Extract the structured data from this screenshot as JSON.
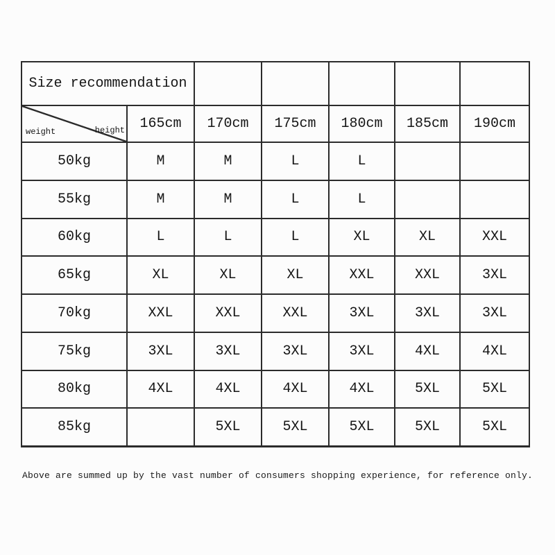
{
  "title": "Size recommendation",
  "corner": {
    "weight_label": "weight",
    "height_label": "height"
  },
  "table": {
    "columns": [
      "165cm",
      "170cm",
      "175cm",
      "180cm",
      "185cm",
      "190cm"
    ],
    "rows": [
      {
        "weight": "50kg",
        "sizes": [
          "M",
          "M",
          "L",
          "L",
          "",
          ""
        ]
      },
      {
        "weight": "55kg",
        "sizes": [
          "M",
          "M",
          "L",
          "L",
          "",
          ""
        ]
      },
      {
        "weight": "60kg",
        "sizes": [
          "L",
          "L",
          "L",
          "XL",
          "XL",
          "XXL"
        ]
      },
      {
        "weight": "65kg",
        "sizes": [
          "XL",
          "XL",
          "XL",
          "XXL",
          "XXL",
          "3XL"
        ]
      },
      {
        "weight": "70kg",
        "sizes": [
          "XXL",
          "XXL",
          "XXL",
          "3XL",
          "3XL",
          "3XL"
        ]
      },
      {
        "weight": "75kg",
        "sizes": [
          "3XL",
          "3XL",
          "3XL",
          "3XL",
          "4XL",
          "4XL"
        ]
      },
      {
        "weight": "80kg",
        "sizes": [
          "4XL",
          "4XL",
          "4XL",
          "4XL",
          "5XL",
          "5XL"
        ]
      },
      {
        "weight": "85kg",
        "sizes": [
          "",
          "5XL",
          "5XL",
          "5XL",
          "5XL",
          "5XL"
        ]
      }
    ]
  },
  "footer": "Above are summed up by the vast number of consumers shopping experience, for reference only.",
  "colors": {
    "border": "#2b2b2b",
    "text": "#151515",
    "background": "#fcfcfc"
  }
}
